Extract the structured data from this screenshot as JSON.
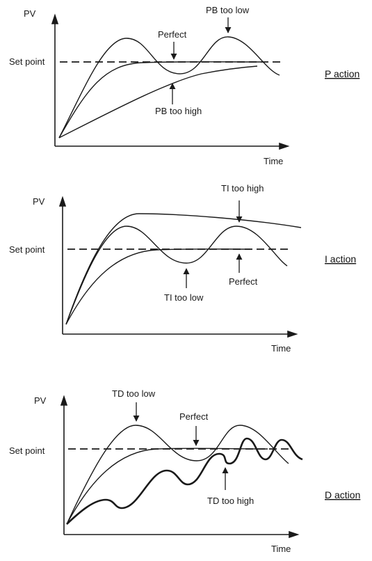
{
  "panels": [
    {
      "action": "P action",
      "pv": "PV",
      "setpoint": "Set point",
      "time": "Time",
      "labels": {
        "low": "PB too low",
        "perfect": "Perfect",
        "high": "PB too high"
      }
    },
    {
      "action": "I action",
      "pv": "PV",
      "setpoint": "Set point",
      "time": "Time",
      "labels": {
        "high": "TI too high",
        "low": "TI too low",
        "perfect": "Perfect"
      }
    },
    {
      "action": "D action",
      "pv": "PV",
      "setpoint": "Set point",
      "time": "Time",
      "labels": {
        "low": "TD too low",
        "perfect": "Perfect",
        "high": "TD too high"
      }
    }
  ]
}
